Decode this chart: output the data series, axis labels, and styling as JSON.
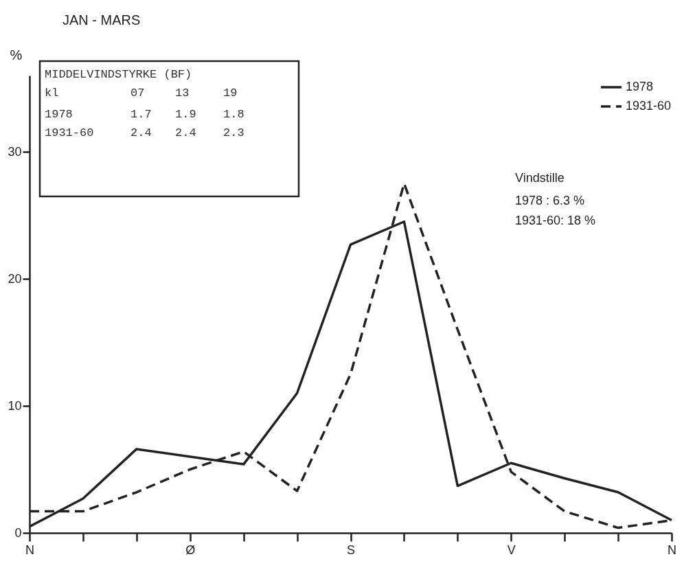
{
  "chart_data": {
    "type": "line",
    "title": "JAN - MARS",
    "ylabel": "%",
    "categories": [
      "N",
      null,
      null,
      "Ø",
      null,
      null,
      "S",
      null,
      null,
      "V",
      null,
      null,
      "N"
    ],
    "series": [
      {
        "name": "1978",
        "color": "#222222",
        "line_style": "solid",
        "values": [
          0.5,
          2.7,
          6.6,
          6.0,
          5.4,
          11.0,
          22.7,
          24.5,
          3.7,
          5.5,
          4.3,
          3.2,
          1.0
        ]
      },
      {
        "name": "1931-60",
        "color": "#222222",
        "line_style": "dashed",
        "values": [
          1.7,
          1.7,
          3.2,
          5.0,
          6.4,
          3.3,
          12.5,
          27.5,
          16.0,
          4.8,
          1.7,
          0.4,
          1.0
        ]
      }
    ],
    "ylim": [
      0,
      36
    ],
    "yticks": [
      0,
      10,
      20,
      30
    ],
    "grid": false,
    "legend": "top right",
    "marker": "none",
    "annotations": [
      "MIDDELVINDSTYRKE (BF)",
      "kl        07   13   19",
      "1978      1.7  1.9  1.8",
      "1931-60   2.4  2.4  2.3",
      "Vindstille",
      "1978 : 6.3 %",
      "1931-60: 18 %"
    ]
  }
}
